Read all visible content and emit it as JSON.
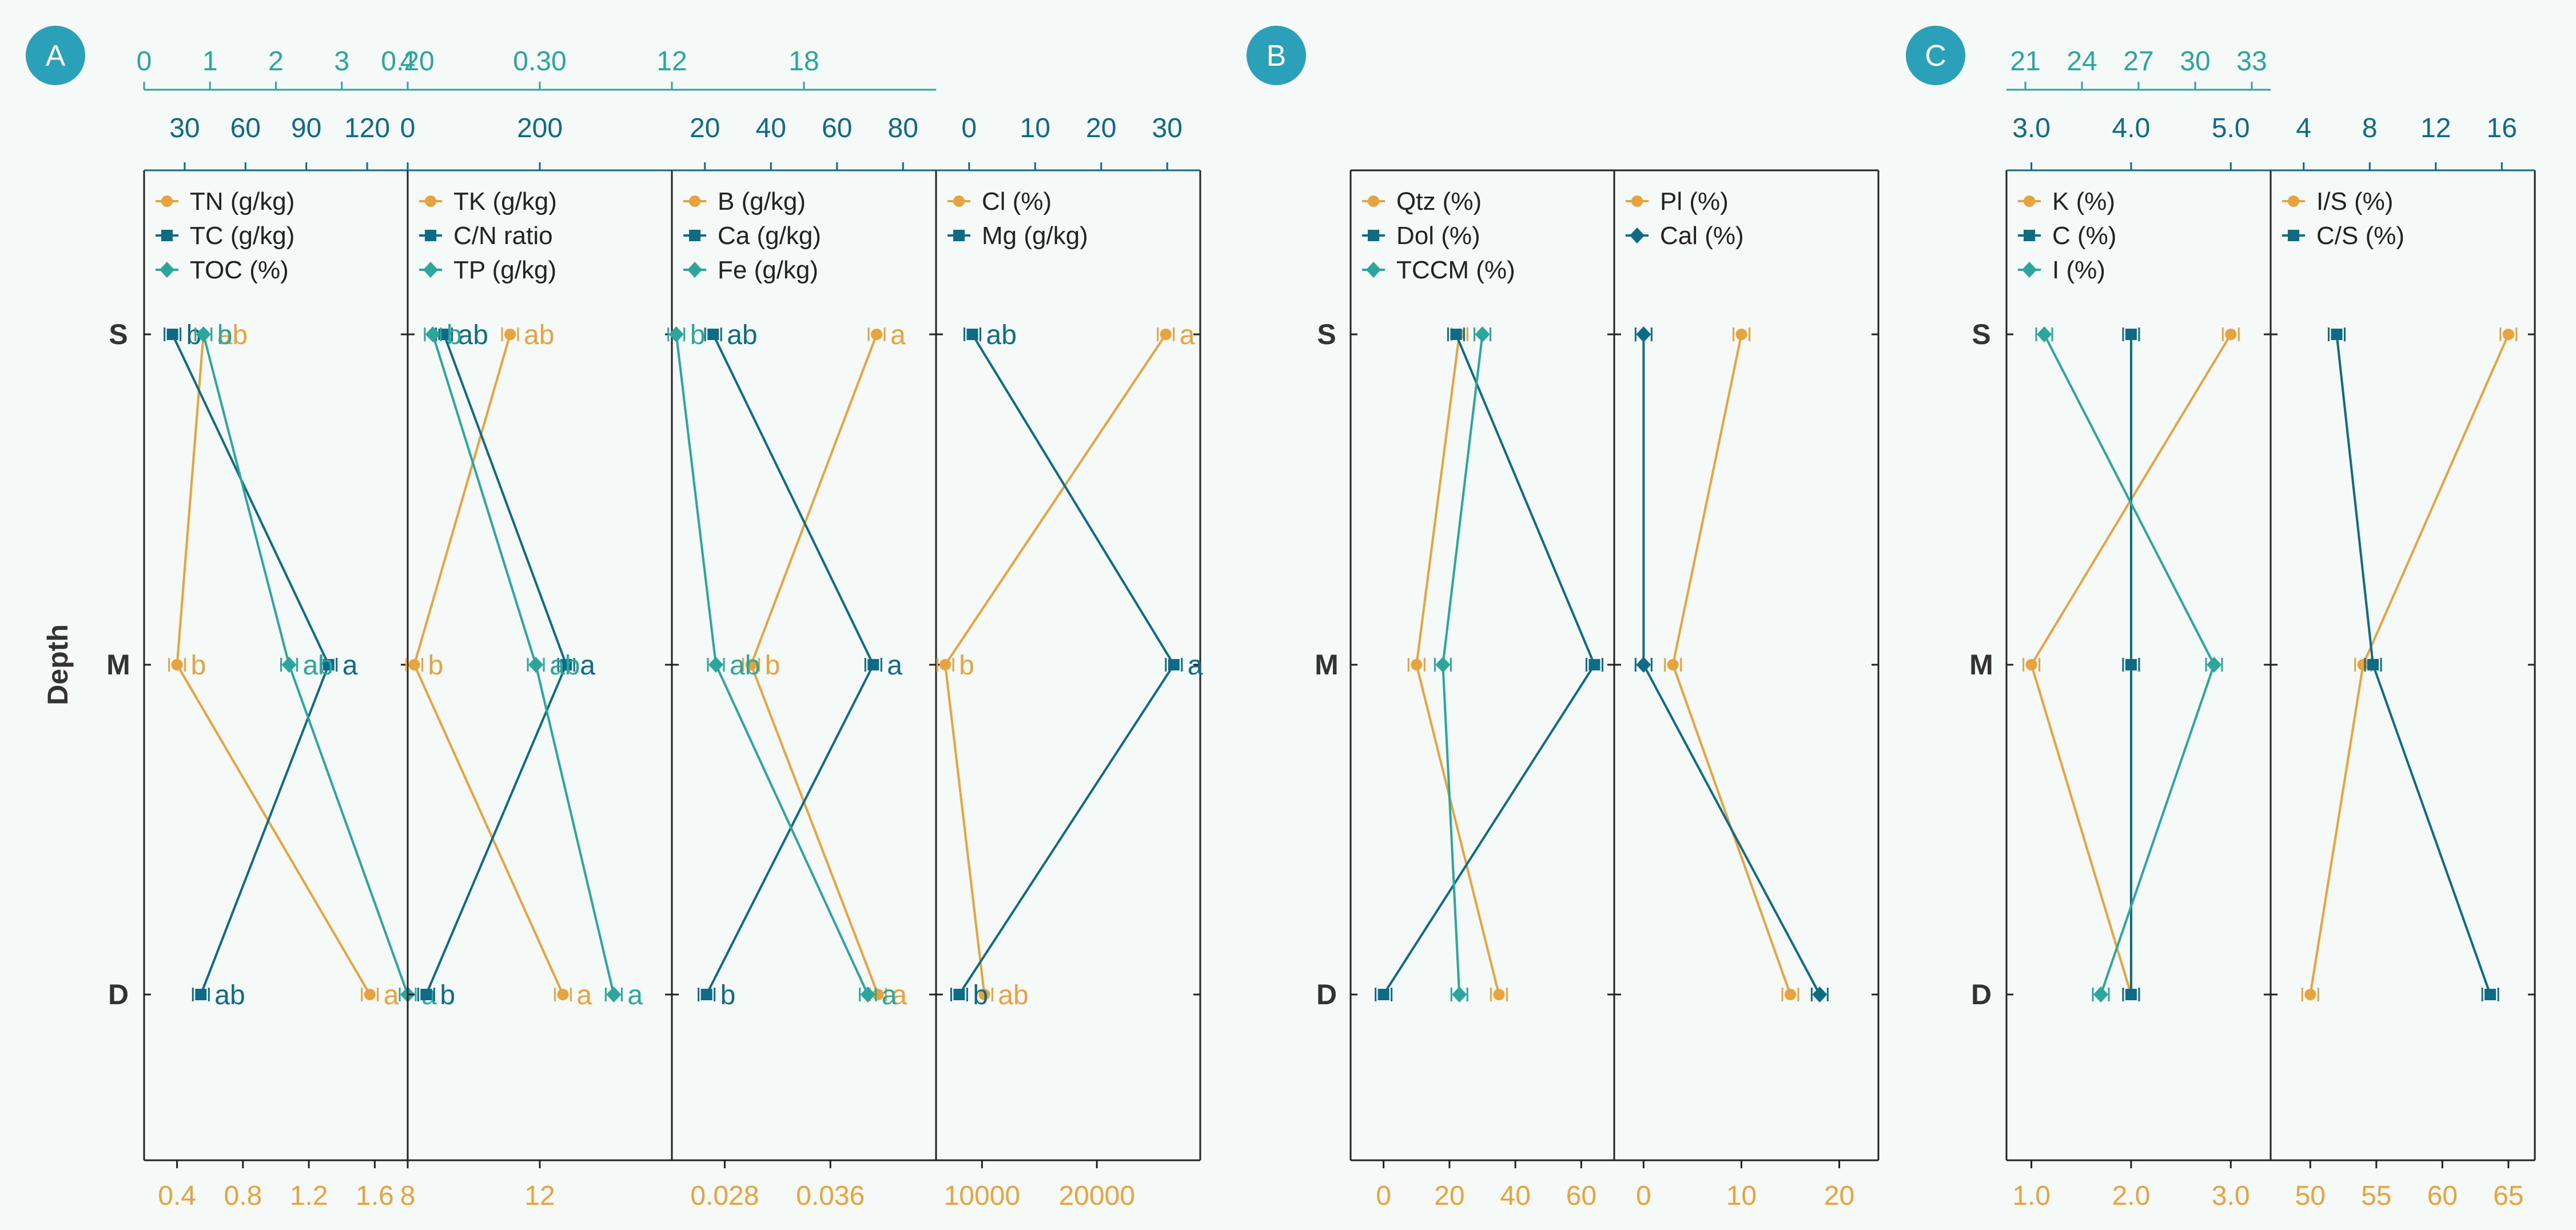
{
  "colors": {
    "orange": "#e8a33d",
    "dark": "#0d6b85",
    "teal": "#2ba69a",
    "frame": "#222222",
    "badge": "#2aa1b8"
  },
  "depth_label": "Depth",
  "rows": [
    "S",
    "M",
    "D"
  ],
  "chart_data": [
    {
      "panel": "A",
      "type": "line",
      "orientation": "vertical-profile",
      "categories": [
        "S",
        "M",
        "D"
      ],
      "axes": [
        {
          "pos": "top2",
          "color": "teal",
          "ticks": [
            "0",
            "1",
            "2",
            "3",
            "4"
          ],
          "range": [
            0,
            4
          ],
          "tickvals": [
            0,
            1,
            2,
            3,
            4
          ]
        },
        {
          "pos": "top1",
          "color": "dark",
          "ticks": [
            "30",
            "60",
            "90",
            "120"
          ],
          "range": [
            10,
            140
          ],
          "tickvals": [
            30,
            60,
            90,
            120
          ]
        },
        {
          "pos": "bottom",
          "color": "orange",
          "ticks": [
            "0.4",
            "0.8",
            "1.2",
            "1.6"
          ],
          "range": [
            0.2,
            1.8
          ],
          "tickvals": [
            0.4,
            0.8,
            1.2,
            1.6
          ]
        }
      ],
      "series": [
        {
          "name": "TN (g/kg)",
          "color": "orange",
          "marker": "circle",
          "axis": "bottom",
          "values": [
            0.56,
            0.4,
            1.57
          ],
          "letters": [
            "ab",
            "b",
            "a"
          ]
        },
        {
          "name": "TC (g/kg)",
          "color": "dark",
          "marker": "square",
          "axis": "top1",
          "values": [
            24,
            101,
            38
          ],
          "letters": [
            "b",
            "a",
            "ab"
          ]
        },
        {
          "name": "TOC (%)",
          "color": "teal",
          "marker": "diamond",
          "axis": "top2",
          "values": [
            0.9,
            2.2,
            4.0
          ],
          "letters": [
            "b",
            "ab",
            "a"
          ]
        }
      ]
    },
    {
      "panel": "A2",
      "type": "line",
      "orientation": "vertical-profile",
      "categories": [
        "S",
        "M",
        "D"
      ],
      "axes": [
        {
          "pos": "top2",
          "color": "teal",
          "ticks": [
            "0.20",
            "0.30"
          ],
          "range": [
            0.2,
            0.4
          ],
          "tickvals": [
            0.2,
            0.3
          ]
        },
        {
          "pos": "top1",
          "color": "dark",
          "ticks": [
            "0",
            "200"
          ],
          "range": [
            0,
            400
          ],
          "tickvals": [
            0,
            200
          ]
        },
        {
          "pos": "bottom",
          "color": "orange",
          "ticks": [
            "8",
            "12"
          ],
          "range": [
            8,
            16
          ],
          "tickvals": [
            8,
            12
          ]
        }
      ],
      "series": [
        {
          "name": "TK (g/kg)",
          "color": "orange",
          "marker": "circle",
          "axis": "bottom",
          "values": [
            11.1,
            8.2,
            12.7
          ],
          "letters": [
            "ab",
            "b",
            "a"
          ]
        },
        {
          "name": "C/N ratio",
          "color": "dark",
          "marker": "square",
          "axis": "top1",
          "values": [
            55,
            240,
            28
          ],
          "letters": [
            "ab",
            "a",
            "b"
          ]
        },
        {
          "name": "TP (g/kg)",
          "color": "teal",
          "marker": "diamond",
          "axis": "top2",
          "values": [
            0.219,
            0.297,
            0.356
          ],
          "letters": [
            "b",
            "ab",
            "a"
          ]
        }
      ]
    },
    {
      "panel": "A3",
      "type": "line",
      "orientation": "vertical-profile",
      "categories": [
        "S",
        "M",
        "D"
      ],
      "axes": [
        {
          "pos": "top2",
          "color": "teal",
          "ticks": [
            "12",
            "18"
          ],
          "range": [
            12,
            24
          ],
          "tickvals": [
            12,
            18
          ]
        },
        {
          "pos": "top1",
          "color": "dark",
          "ticks": [
            "20",
            "40",
            "60",
            "80"
          ],
          "range": [
            10,
            90
          ],
          "tickvals": [
            20,
            40,
            60,
            80
          ]
        },
        {
          "pos": "bottom",
          "color": "orange",
          "ticks": [
            "0.028",
            "0.036"
          ],
          "range": [
            0.024,
            0.044
          ],
          "tickvals": [
            0.028,
            0.036
          ]
        }
      ],
      "series": [
        {
          "name": "B (g/kg)",
          "color": "orange",
          "marker": "circle",
          "axis": "bottom",
          "values": [
            0.0395,
            0.03,
            0.0396
          ],
          "letters": [
            "a",
            "b",
            "a"
          ]
        },
        {
          "name": "Ca (g/kg)",
          "color": "dark",
          "marker": "square",
          "axis": "top1",
          "values": [
            22.5,
            71,
            20.5
          ],
          "letters": [
            "ab",
            "a",
            "b"
          ]
        },
        {
          "name": "Fe (g/kg)",
          "color": "teal",
          "marker": "diamond",
          "axis": "top2",
          "values": [
            12.2,
            14.0,
            20.9
          ],
          "letters": [
            "b",
            "ab",
            "a"
          ]
        }
      ]
    },
    {
      "panel": "A4",
      "type": "line",
      "orientation": "vertical-profile",
      "categories": [
        "S",
        "M",
        "D"
      ],
      "axes": [
        {
          "pos": "top1",
          "color": "dark",
          "ticks": [
            "0",
            "10",
            "20",
            "30"
          ],
          "range": [
            -5,
            35
          ],
          "tickvals": [
            0,
            10,
            20,
            30
          ]
        },
        {
          "pos": "bottom",
          "color": "orange",
          "ticks": [
            "10000",
            "20000"
          ],
          "range": [
            6000,
            29000
          ],
          "tickvals": [
            10000,
            20000
          ]
        }
      ],
      "series": [
        {
          "name": "Cl (%)",
          "color": "orange",
          "marker": "circle",
          "axis": "bottom",
          "values": [
            26000,
            6800,
            10200
          ],
          "letters": [
            "a",
            "b",
            "ab"
          ]
        },
        {
          "name": "Mg (g/kg)",
          "color": "dark",
          "marker": "square",
          "axis": "top1",
          "values": [
            0.5,
            31,
            -1.5
          ],
          "letters": [
            "ab",
            "a",
            "b"
          ]
        }
      ]
    },
    {
      "panel": "B",
      "type": "line",
      "orientation": "vertical-profile",
      "categories": [
        "S",
        "M",
        "D"
      ],
      "axes": [
        {
          "pos": "bottom",
          "color": "orange",
          "ticks": [
            "0",
            "20",
            "40",
            "60"
          ],
          "range": [
            -10,
            70
          ],
          "tickvals": [
            0,
            20,
            40,
            60
          ]
        }
      ],
      "series": [
        {
          "name": "Qtz (%)",
          "color": "orange",
          "marker": "circle",
          "axis": "bottom",
          "values": [
            23,
            10,
            35
          ]
        },
        {
          "name": "Dol (%)",
          "color": "dark",
          "marker": "square",
          "axis": "bottom",
          "values": [
            22,
            64,
            0
          ]
        },
        {
          "name": "TCCM (%)",
          "color": "teal",
          "marker": "diamond",
          "axis": "bottom",
          "values": [
            30,
            18,
            23
          ]
        }
      ]
    },
    {
      "panel": "B2",
      "type": "line",
      "orientation": "vertical-profile",
      "categories": [
        "S",
        "M",
        "D"
      ],
      "axes": [
        {
          "pos": "bottom",
          "color": "orange",
          "ticks": [
            "0",
            "10",
            "20"
          ],
          "range": [
            -3,
            24
          ],
          "tickvals": [
            0,
            10,
            20
          ]
        }
      ],
      "series": [
        {
          "name": "Pl (%)",
          "color": "orange",
          "marker": "circle",
          "axis": "bottom",
          "values": [
            10,
            3,
            15
          ]
        },
        {
          "name": "Cal (%)",
          "color": "dark",
          "marker": "diamond",
          "axis": "bottom",
          "values": [
            0,
            0,
            18
          ]
        }
      ]
    },
    {
      "panel": "C",
      "type": "line",
      "orientation": "vertical-profile",
      "categories": [
        "S",
        "M",
        "D"
      ],
      "axes": [
        {
          "pos": "top2",
          "color": "teal",
          "ticks": [
            "21",
            "24",
            "27",
            "30",
            "33"
          ],
          "range": [
            20,
            34
          ],
          "tickvals": [
            21,
            24,
            27,
            30,
            33
          ]
        },
        {
          "pos": "top1",
          "color": "dark",
          "ticks": [
            "3.0",
            "4.0",
            "5.0"
          ],
          "range": [
            2.75,
            5.4
          ],
          "tickvals": [
            3,
            4,
            5
          ]
        },
        {
          "pos": "bottom",
          "color": "orange",
          "ticks": [
            "1.0",
            "2.0",
            "3.0"
          ],
          "range": [
            0.75,
            3.4
          ],
          "tickvals": [
            1,
            2,
            3
          ]
        }
      ],
      "series": [
        {
          "name": "K (%)",
          "color": "orange",
          "marker": "circle",
          "axis": "bottom",
          "values": [
            3.0,
            1.0,
            2.0
          ]
        },
        {
          "name": "C (%)",
          "color": "dark",
          "marker": "square",
          "axis": "top1",
          "values": [
            4.0,
            4.0,
            4.0
          ]
        },
        {
          "name": "I (%)",
          "color": "teal",
          "marker": "diamond",
          "axis": "top2",
          "values": [
            22.0,
            31.0,
            25.0
          ]
        }
      ]
    },
    {
      "panel": "C2",
      "type": "line",
      "orientation": "vertical-profile",
      "categories": [
        "S",
        "M",
        "D"
      ],
      "axes": [
        {
          "pos": "top1",
          "color": "dark",
          "ticks": [
            "4",
            "8",
            "12",
            "16"
          ],
          "range": [
            2,
            18
          ],
          "tickvals": [
            4,
            8,
            12,
            16
          ]
        },
        {
          "pos": "bottom",
          "color": "orange",
          "ticks": [
            "50",
            "55",
            "60",
            "65"
          ],
          "range": [
            47,
            67
          ],
          "tickvals": [
            50,
            55,
            60,
            65
          ]
        }
      ],
      "series": [
        {
          "name": "I/S (%)",
          "color": "orange",
          "marker": "circle",
          "axis": "bottom",
          "values": [
            65,
            54,
            50
          ]
        },
        {
          "name": "C/S (%)",
          "color": "dark",
          "marker": "square",
          "axis": "top1",
          "values": [
            6.0,
            8.2,
            15.3
          ]
        }
      ]
    }
  ]
}
